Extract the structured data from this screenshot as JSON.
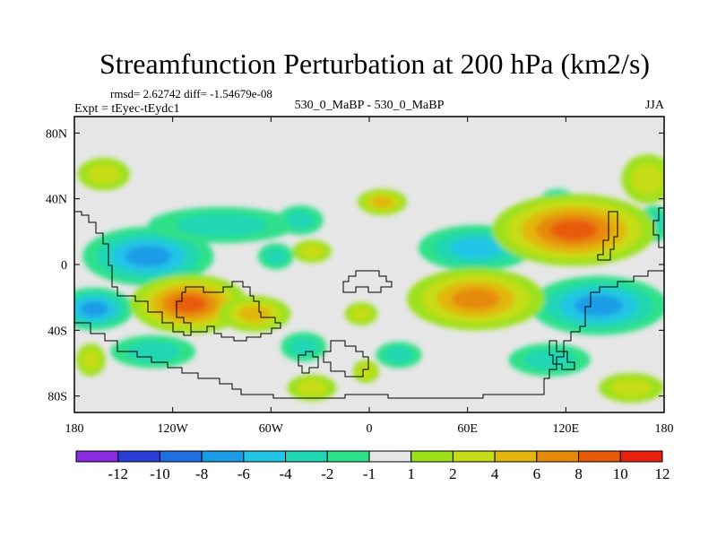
{
  "chart_data": {
    "type": "heatmap",
    "title": "Streamfunction Perturbation at 200 hPa (km2/s)",
    "stats_text": "rmsd= 2.62742 diff= -1.54679e-08",
    "experiment": "Expt = tEyec-tEydc1",
    "comparison": "530_0_MaBP - 530_0_MaBP",
    "season": "JJA",
    "xlim": [
      -180,
      180
    ],
    "ylim": [
      -90,
      90
    ],
    "x_ticks": [
      {
        "value": -180,
        "label": "180"
      },
      {
        "value": -120,
        "label": "120W"
      },
      {
        "value": -60,
        "label": "60W"
      },
      {
        "value": 0,
        "label": "0"
      },
      {
        "value": 60,
        "label": "60E"
      },
      {
        "value": 120,
        "label": "120E"
      },
      {
        "value": 180,
        "label": "180"
      }
    ],
    "y_ticks": [
      {
        "value": 80,
        "label": "80N"
      },
      {
        "value": 40,
        "label": "40N"
      },
      {
        "value": 0,
        "label": "0"
      },
      {
        "value": -40,
        "label": "40S"
      },
      {
        "value": -80,
        "label": "80S"
      }
    ],
    "colorbar": {
      "boundaries": [
        "-12",
        "-10",
        "-8",
        "-6",
        "-4",
        "-2",
        "-1",
        "1",
        "2",
        "4",
        "6",
        "8",
        "10",
        "12"
      ],
      "colors": [
        "#8a2be2",
        "#2b3fd8",
        "#1f6fe0",
        "#1a9be6",
        "#22c4e6",
        "#21d6b4",
        "#2ee08a",
        "#e6e6e6",
        "#9ce01a",
        "#c6dc16",
        "#e2b60e",
        "#e68a0a",
        "#ea5a0a",
        "#e8200e"
      ]
    },
    "blobs": [
      {
        "lon": -135,
        "lat": 5,
        "a": 40,
        "b": 18,
        "value": -6.5
      },
      {
        "lon": -90,
        "lat": 24,
        "a": 45,
        "b": 11,
        "value": -2.5
      },
      {
        "lon": -42,
        "lat": 27,
        "a": 14,
        "b": 9,
        "value": -2.5
      },
      {
        "lon": -57,
        "lat": 5,
        "a": 11,
        "b": 8,
        "value": -2.5
      },
      {
        "lon": -168,
        "lat": -27,
        "a": 24,
        "b": 13,
        "value": -7.5
      },
      {
        "lon": -132,
        "lat": -53,
        "a": 26,
        "b": 10,
        "value": -2.5
      },
      {
        "lon": -40,
        "lat": -50,
        "a": 14,
        "b": 9,
        "value": -2.5
      },
      {
        "lon": 18,
        "lat": -55,
        "a": 14,
        "b": 8,
        "value": -2.5
      },
      {
        "lon": 65,
        "lat": 10,
        "a": 35,
        "b": 14,
        "value": -4.5
      },
      {
        "lon": 140,
        "lat": -25,
        "a": 42,
        "b": 18,
        "value": -7.5
      },
      {
        "lon": 110,
        "lat": -58,
        "a": 25,
        "b": 10,
        "value": -2.5
      },
      {
        "lon": 115,
        "lat": 40,
        "a": 10,
        "b": 6,
        "value": -2.5
      },
      {
        "lon": 174,
        "lat": 25,
        "a": 10,
        "b": 11,
        "value": -2.5
      },
      {
        "lon": -162,
        "lat": 55,
        "a": 16,
        "b": 10,
        "value": 3.5
      },
      {
        "lon": 8,
        "lat": 38,
        "a": 15,
        "b": 8,
        "value": 5.0
      },
      {
        "lon": -35,
        "lat": 8,
        "a": 12,
        "b": 7,
        "value": 3.5
      },
      {
        "lon": -110,
        "lat": -24,
        "a": 36,
        "b": 18,
        "value": 9.0
      },
      {
        "lon": -70,
        "lat": -30,
        "a": 22,
        "b": 11,
        "value": 4.5
      },
      {
        "lon": -170,
        "lat": -58,
        "a": 9,
        "b": 10,
        "value": 3.5
      },
      {
        "lon": 65,
        "lat": -21,
        "a": 42,
        "b": 19,
        "value": 8.0
      },
      {
        "lon": 125,
        "lat": 21,
        "a": 50,
        "b": 22,
        "value": 9.0
      },
      {
        "lon": 170,
        "lat": 52,
        "a": 16,
        "b": 15,
        "value": 3.5
      },
      {
        "lon": -35,
        "lat": -75,
        "a": 15,
        "b": 8,
        "value": 3.5
      },
      {
        "lon": -5,
        "lat": -30,
        "a": 10,
        "b": 7,
        "value": 3.5
      },
      {
        "lon": 160,
        "lat": -75,
        "a": 20,
        "b": 9,
        "value": 3.5
      },
      {
        "lon": -2,
        "lat": -65,
        "a": 8,
        "b": 7,
        "value": 2.5
      }
    ]
  }
}
